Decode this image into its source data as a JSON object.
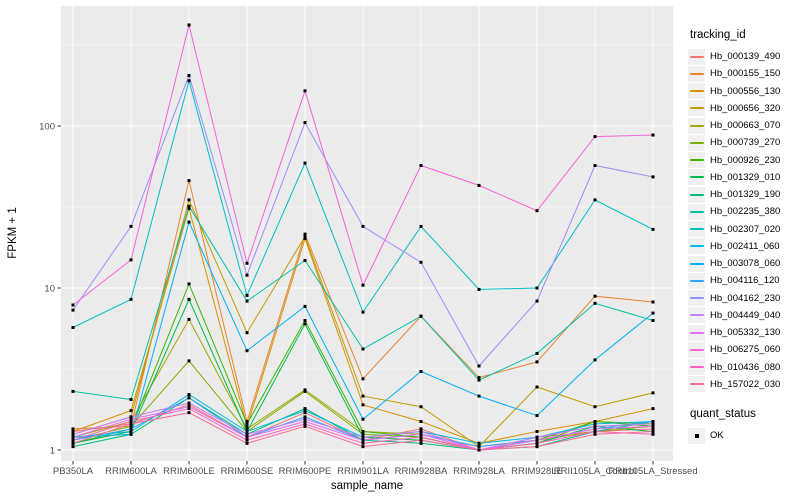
{
  "figure": {
    "background": "#FFFFFF",
    "panel_background": "#EBEBEB",
    "grid_color": "#FFFFFF",
    "axis_text_color": "#4D4D4D",
    "title_color": "#000000",
    "point_color": "#000000",
    "legend_key_background": "#F0F0F0"
  },
  "axes": {
    "x_title": "sample_name",
    "y_title": "FPKM + 1",
    "y_tick_labels": [
      "1",
      "10",
      "100"
    ],
    "y_tick_values": [
      1,
      10,
      100
    ]
  },
  "legend": {
    "tracking_title": "tracking_id",
    "quant_title": "quant_status",
    "quant_items": [
      {
        "label": "OK",
        "shape": "black-square"
      }
    ]
  },
  "chart_data": {
    "type": "line",
    "title": "",
    "xlabel": "sample_name",
    "ylabel": "FPKM + 1",
    "x_scale": "categorical",
    "y_scale": "log10",
    "ylim": [
      1,
      550
    ],
    "grid": "major white + minor white on gray panel",
    "legend_position": "right",
    "point_marker": "small black square (quant_status = OK)",
    "categories": [
      "PB350LA",
      "RRIM600LA",
      "RRIM600LE",
      "RRIM600SE",
      "RRIM600PE",
      "RRIM901LA",
      "RRIM928BA",
      "RRIM928LA",
      "RRIM928LE",
      "RRII105LA_Control",
      "RRII105LA_Stressed"
    ],
    "series": [
      {
        "name": "Hb_000139_490",
        "color": "#F8766D",
        "values": [
          1.3,
          1.45,
          1.9,
          1.2,
          1.7,
          1.15,
          1.35,
          1.0,
          1.2,
          1.3,
          1.35
        ]
      },
      {
        "name": "Hb_000155_150",
        "color": "#EA8331",
        "values": [
          1.35,
          1.4,
          46,
          1.5,
          21.5,
          2.75,
          6.7,
          2.8,
          3.5,
          8.9,
          8.2
        ]
      },
      {
        "name": "Hb_000556_130",
        "color": "#D89000",
        "values": [
          1.3,
          1.75,
          31,
          1.4,
          20.2,
          1.9,
          1.5,
          1.1,
          1.3,
          1.5,
          1.8
        ]
      },
      {
        "name": "Hb_000656_320",
        "color": "#C09B00",
        "values": [
          1.25,
          1.6,
          35,
          5.3,
          20.8,
          2.15,
          1.85,
          1.05,
          2.45,
          1.85,
          2.25
        ]
      },
      {
        "name": "Hb_000663_070",
        "color": "#A3A500",
        "values": [
          1.2,
          1.5,
          6.4,
          1.35,
          2.35,
          1.3,
          1.25,
          1.05,
          1.15,
          1.3,
          1.4
        ]
      },
      {
        "name": "Hb_000739_270",
        "color": "#7CAE00",
        "values": [
          1.15,
          1.4,
          3.55,
          1.3,
          2.3,
          1.25,
          1.2,
          1.0,
          1.1,
          1.5,
          1.45
        ]
      },
      {
        "name": "Hb_000926_230",
        "color": "#39B600",
        "values": [
          1.1,
          1.35,
          10.6,
          1.45,
          6.3,
          1.3,
          1.2,
          1.0,
          1.15,
          1.5,
          1.4
        ]
      },
      {
        "name": "Hb_001329_010",
        "color": "#00BB4E",
        "values": [
          1.1,
          1.3,
          8.5,
          1.3,
          6.0,
          1.2,
          1.15,
          1.0,
          1.1,
          1.4,
          1.3
        ]
      },
      {
        "name": "Hb_001329_190",
        "color": "#00BF7D",
        "values": [
          1.05,
          1.25,
          2.1,
          1.25,
          1.8,
          1.15,
          1.1,
          1.0,
          1.05,
          1.3,
          1.5
        ]
      },
      {
        "name": "Hb_002235_380",
        "color": "#00C1A3",
        "values": [
          2.3,
          2.05,
          32,
          8.3,
          14.8,
          4.2,
          6.7,
          2.7,
          3.95,
          8.05,
          6.3
        ]
      },
      {
        "name": "Hb_002307_020",
        "color": "#00BFC4",
        "values": [
          5.7,
          8.5,
          190,
          9.0,
          59,
          7.1,
          24,
          9.8,
          10.0,
          35,
          23
        ]
      },
      {
        "name": "Hb_002411_060",
        "color": "#00BAE0",
        "values": [
          1.2,
          1.3,
          2.2,
          1.3,
          1.75,
          1.2,
          1.3,
          1.1,
          1.2,
          1.45,
          1.5
        ]
      },
      {
        "name": "Hb_003078_060",
        "color": "#00B0F6",
        "values": [
          1.2,
          1.25,
          25.5,
          4.1,
          7.7,
          1.55,
          3.05,
          2.15,
          1.63,
          3.6,
          7.0
        ]
      },
      {
        "name": "Hb_004116_120",
        "color": "#35A2FF",
        "values": [
          1.15,
          1.35,
          2.1,
          1.2,
          1.6,
          1.15,
          1.25,
          1.05,
          1.15,
          1.35,
          1.5
        ]
      },
      {
        "name": "Hb_004162_230",
        "color": "#9590FF",
        "values": [
          7.3,
          24,
          205,
          12.0,
          105,
          24,
          14.4,
          3.3,
          8.3,
          57,
          48.5
        ]
      },
      {
        "name": "Hb_004449_040",
        "color": "#C77CFF",
        "values": [
          1.25,
          1.6,
          1.95,
          1.25,
          1.55,
          1.2,
          1.3,
          1.0,
          1.2,
          1.4,
          1.45
        ]
      },
      {
        "name": "Hb_005332_130",
        "color": "#E76BF3",
        "values": [
          1.2,
          1.55,
          1.85,
          1.2,
          1.5,
          1.15,
          1.25,
          1.0,
          1.15,
          1.35,
          1.4
        ]
      },
      {
        "name": "Hb_006275_060",
        "color": "#FA62DB",
        "values": [
          7.85,
          14.9,
          420,
          14.2,
          165,
          10.4,
          57,
          43,
          30,
          86,
          88
        ]
      },
      {
        "name": "Hb_010436_080",
        "color": "#FF61C3",
        "values": [
          1.15,
          1.5,
          1.8,
          1.15,
          1.45,
          1.1,
          1.2,
          1.0,
          1.1,
          1.3,
          1.25
        ]
      },
      {
        "name": "Hb_157022_030",
        "color": "#FF6A98",
        "values": [
          1.1,
          1.45,
          1.7,
          1.1,
          1.4,
          1.05,
          1.15,
          1.0,
          1.05,
          1.25,
          1.3
        ]
      }
    ]
  }
}
